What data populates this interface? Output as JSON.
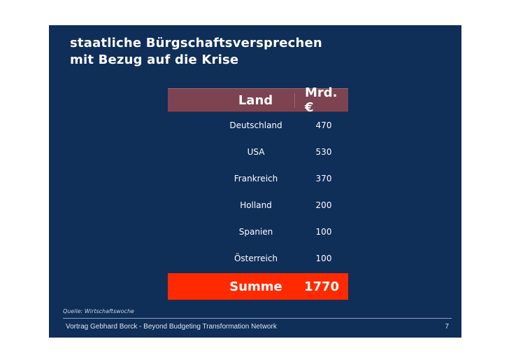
{
  "title": {
    "line1": "staatliche Bürgschaftsversprechen",
    "line2": "mit Bezug auf die Krise"
  },
  "table": {
    "header": {
      "country": "Land",
      "amount": "Mrd. €"
    },
    "rows": [
      {
        "country": "Deutschland",
        "amount": "470"
      },
      {
        "country": "USA",
        "amount": "530"
      },
      {
        "country": "Frankreich",
        "amount": "370"
      },
      {
        "country": "Holland",
        "amount": "200"
      },
      {
        "country": "Spanien",
        "amount": "100"
      },
      {
        "country": "Österreich",
        "amount": "100"
      }
    ],
    "total": {
      "label": "Summe",
      "amount": "1770"
    }
  },
  "source": "Quelle: Wirtschaftswoche",
  "footer": {
    "text": "Vortrag Gebhard Borck - Beyond Budgeting Transformation Network",
    "page": "7"
  },
  "colors": {
    "background": "#0f2e58",
    "header": "#7d4350",
    "total": "#ff2a00"
  }
}
